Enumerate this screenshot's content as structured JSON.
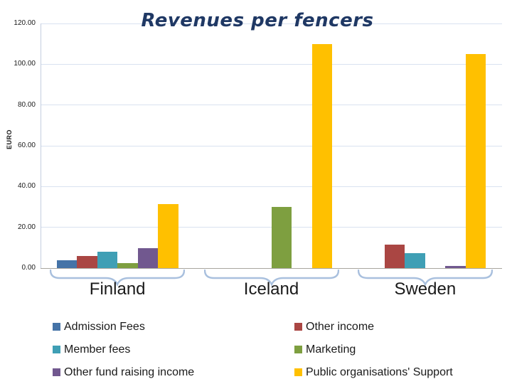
{
  "chart_data": {
    "type": "bar",
    "title": "Revenues per fencers",
    "xlabel": "",
    "ylabel": "EURO",
    "categories": [
      "Finland",
      "Iceland",
      "Sweden"
    ],
    "series": [
      {
        "name": "Admission Fees",
        "color": "#4573A7",
        "values": [
          3.8,
          0,
          0
        ]
      },
      {
        "name": "Other income",
        "color": "#AA4643",
        "values": [
          6.0,
          0,
          11.5
        ]
      },
      {
        "name": "Member fees",
        "color": "#3F9FB5",
        "values": [
          8.0,
          0,
          7.2
        ]
      },
      {
        "name": "Marketing",
        "color": "#7E9F40",
        "values": [
          2.3,
          30,
          0
        ]
      },
      {
        "name": "Other fund raising income",
        "color": "#71588F",
        "values": [
          9.6,
          0,
          1.2
        ]
      },
      {
        "name": "Public organisations' Support",
        "color": "#FFC000",
        "values": [
          31.5,
          110,
          105
        ]
      }
    ],
    "ylim": [
      0,
      120
    ],
    "ytick_step": 20,
    "ytick_labels": [
      "0.00",
      "20.00",
      "40.00",
      "60.00",
      "80.00",
      "100.00",
      "120.00"
    ],
    "grid": true,
    "legend_position": "bottom-two-columns",
    "colors": {
      "title": "#1F3864",
      "gridline": "#D9E2F0",
      "y_axis_line": "#C3CEE0",
      "x_axis_line": "#A9A69F",
      "brace": "#A9C0DE",
      "text": "#1a1a1a"
    }
  }
}
